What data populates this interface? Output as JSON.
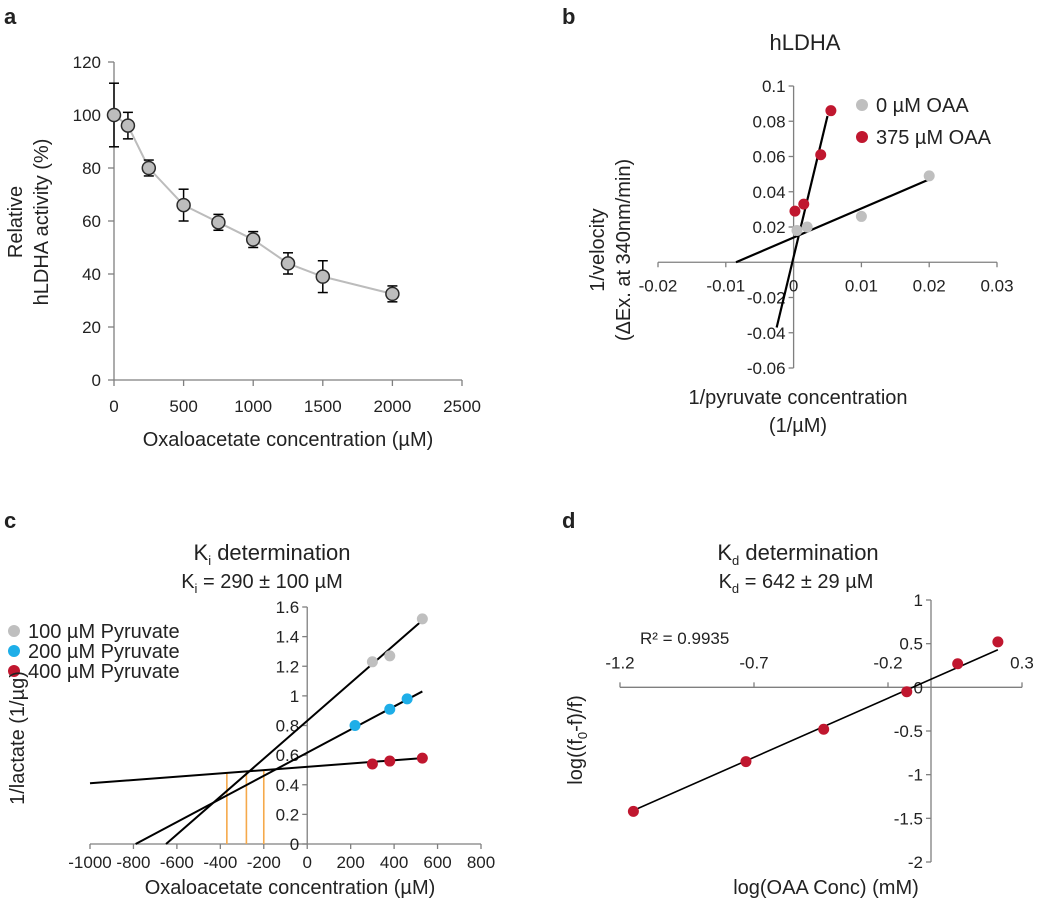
{
  "colors": {
    "gray": "#bfbfbf",
    "red": "#c0172f",
    "blue": "#1eaee8",
    "orange": "#f5a94b",
    "black": "#000000",
    "axis": "#7f7f7f"
  },
  "chart_data": [
    {
      "panel": "a",
      "type": "scatter",
      "title": "",
      "xlabel": "Oxaloacetate  concentration (µM)",
      "ylabel_line1": "Relative",
      "ylabel_line2": "hLDHA activity (%)",
      "xlim": [
        0,
        2500
      ],
      "ylim": [
        0,
        120
      ],
      "xticks": [
        0,
        500,
        1000,
        1500,
        2000,
        2500
      ],
      "yticks": [
        0,
        20,
        40,
        60,
        80,
        100,
        120
      ],
      "series": [
        {
          "name": "hLDHA activity",
          "x": [
            0,
            100,
            250,
            500,
            750,
            1000,
            1250,
            1500,
            2000
          ],
          "y": [
            100,
            96,
            80,
            66,
            59.5,
            53,
            44,
            39,
            32.5
          ],
          "err": [
            12,
            5,
            3,
            6,
            3,
            3,
            4,
            6,
            3
          ]
        }
      ]
    },
    {
      "panel": "b",
      "type": "scatter",
      "title": "hLDHA",
      "xlabel_line1": "1/pyruvate concentration",
      "xlabel_line2": "(1/µM)",
      "ylabel_line1": "1/velocity",
      "ylabel_line2": "(ΔEx. at 340nm/min)",
      "xlim": [
        -0.02,
        0.03
      ],
      "ylim": [
        -0.06,
        0.1
      ],
      "xticks": [
        -0.02,
        -0.01,
        0,
        0.01,
        0.02,
        0.03
      ],
      "yticks": [
        -0.06,
        -0.04,
        -0.02,
        0.02,
        0.04,
        0.06,
        0.08,
        0.1
      ],
      "series": [
        {
          "name": "0 µM OAA",
          "color": "gray",
          "x": [
            0.0005,
            0.002,
            0.01,
            0.02
          ],
          "y": [
            0.018,
            0.02,
            0.026,
            0.049
          ],
          "fit": [
            [
              -0.0085,
              0
            ],
            [
              0.02,
              0.047
            ]
          ]
        },
        {
          "name": "375 µM OAA",
          "color": "red",
          "x": [
            0.0002,
            0.0015,
            0.004,
            0.0055
          ],
          "y": [
            0.029,
            0.033,
            0.061,
            0.086
          ],
          "fit": [
            [
              -0.0025,
              -0.037
            ],
            [
              0.005,
              0.083
            ]
          ]
        }
      ]
    },
    {
      "panel": "c",
      "type": "scatter",
      "title": "K",
      "title_sub": "i",
      "title_rest": " determination",
      "subtitle": "K",
      "subtitle_sub": "i",
      "subtitle_rest": " = 290 ± 100 µM",
      "xlabel": "Oxaloacetate concentration (µM)",
      "ylabel": "1/lactate (1/µg)",
      "xlim": [
        -1000,
        800
      ],
      "ylim": [
        0,
        1.6
      ],
      "xticks": [
        -1000,
        -800,
        -600,
        -400,
        -200,
        0,
        200,
        400,
        600,
        800
      ],
      "yticks": [
        0,
        0.2,
        0.4,
        0.6,
        0.8,
        1,
        1.2,
        1.4,
        1.6
      ],
      "series": [
        {
          "name": "100 µM Pyruvate",
          "color": "gray",
          "x": [
            300,
            380,
            530
          ],
          "y": [
            1.23,
            1.27,
            1.52
          ],
          "fit": [
            [
              -650,
              0
            ],
            [
              530,
              1.51
            ]
          ]
        },
        {
          "name": "200 µM Pyruvate",
          "color": "blue",
          "x": [
            220,
            380,
            460
          ],
          "y": [
            0.8,
            0.91,
            0.98
          ],
          "fit": [
            [
              -790,
              0
            ],
            [
              530,
              1.03
            ]
          ]
        },
        {
          "name": "400 µM Pyruvate",
          "color": "red",
          "x": [
            300,
            380,
            530
          ],
          "y": [
            0.54,
            0.56,
            0.58
          ],
          "fit": [
            [
              -1000,
              0.41
            ],
            [
              530,
              0.58
            ]
          ]
        }
      ],
      "intersections_x": [
        -370,
        -280,
        -200
      ]
    },
    {
      "panel": "d",
      "type": "scatter",
      "title": "K",
      "title_sub": "d",
      "title_rest": " determination",
      "subtitle": "K",
      "subtitle_sub": "d",
      "subtitle_rest": " = 642 ± 29 µM",
      "annotation": "R² = 0.9935",
      "xlabel": "log(OAA Conc) (mM)",
      "ylabel": "log((f",
      "ylabel_sub": "0",
      "ylabel_rest": "-f)/f)",
      "xlim": [
        -1.2,
        0.3
      ],
      "ylim": [
        -2,
        1
      ],
      "xticks": [
        -1.2,
        -0.7,
        -0.2,
        0.3
      ],
      "yticks": [
        -2,
        -1.5,
        -1,
        -0.5,
        0,
        0.5,
        1
      ],
      "series": [
        {
          "name": "data",
          "color": "red",
          "x": [
            -1.15,
            -0.73,
            -0.44,
            -0.13,
            0.06,
            0.21
          ],
          "y": [
            -1.42,
            -0.85,
            -0.48,
            -0.05,
            0.27,
            0.52
          ],
          "fit": [
            [
              -1.15,
              -1.41
            ],
            [
              0.21,
              0.43
            ]
          ]
        }
      ]
    }
  ]
}
